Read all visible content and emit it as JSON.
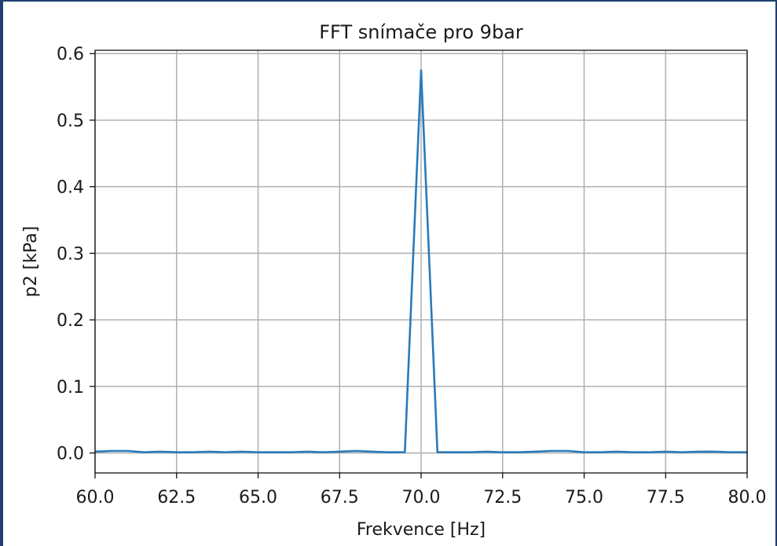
{
  "chart_data": {
    "type": "line",
    "title": "FFT snímače pro 9bar",
    "xlabel": "Frekvence [Hz]",
    "ylabel": "p2 [kPa]",
    "xlim": [
      60.0,
      80.0
    ],
    "ylim": [
      -0.03,
      0.605
    ],
    "grid": true,
    "x_ticks": [
      60.0,
      62.5,
      65.0,
      67.5,
      70.0,
      72.5,
      75.0,
      77.5,
      80.0
    ],
    "x_tick_labels": [
      "60.0",
      "62.5",
      "65.0",
      "67.5",
      "70.0",
      "72.5",
      "75.0",
      "77.5",
      "80.0"
    ],
    "y_ticks": [
      0.0,
      0.1,
      0.2,
      0.3,
      0.4,
      0.5,
      0.6
    ],
    "y_tick_labels": [
      "0.0",
      "0.1",
      "0.2",
      "0.3",
      "0.4",
      "0.5",
      "0.6"
    ],
    "series": [
      {
        "color": "#2a7ab9",
        "x": [
          60.0,
          60.5,
          61.0,
          61.5,
          62.0,
          62.5,
          63.0,
          63.5,
          64.0,
          64.5,
          65.0,
          65.5,
          66.0,
          66.5,
          67.0,
          67.5,
          68.0,
          68.5,
          69.0,
          69.5,
          70.0,
          70.5,
          71.0,
          71.5,
          72.0,
          72.5,
          73.0,
          73.5,
          74.0,
          74.5,
          75.0,
          75.5,
          76.0,
          76.5,
          77.0,
          77.5,
          78.0,
          78.5,
          79.0,
          79.5,
          80.0
        ],
        "y": [
          0.002,
          0.003,
          0.003,
          0.001,
          0.002,
          0.001,
          0.001,
          0.002,
          0.001,
          0.002,
          0.001,
          0.001,
          0.001,
          0.002,
          0.001,
          0.002,
          0.003,
          0.002,
          0.001,
          0.001,
          0.575,
          0.001,
          0.001,
          0.001,
          0.002,
          0.001,
          0.001,
          0.002,
          0.003,
          0.003,
          0.001,
          0.001,
          0.002,
          0.001,
          0.001,
          0.002,
          0.001,
          0.002,
          0.002,
          0.001,
          0.001
        ]
      }
    ]
  }
}
